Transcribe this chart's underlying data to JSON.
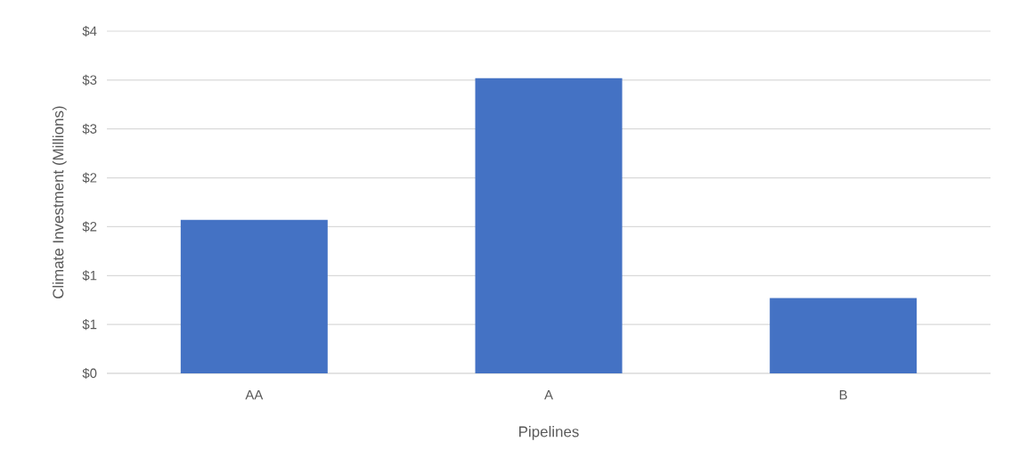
{
  "chart_data": {
    "type": "bar",
    "xlabel": "Pipelines",
    "ylabel": "Climate Investment (Millions)",
    "categories": [
      "AA",
      "A",
      "B"
    ],
    "values": [
      1.57,
      3.02,
      0.77
    ],
    "color": "#4472c4",
    "ylim": [
      0,
      3.5
    ],
    "yticks": [
      {
        "value": 0,
        "label": "$0"
      },
      {
        "value": 0.5,
        "label": "$1"
      },
      {
        "value": 1,
        "label": "$1"
      },
      {
        "value": 1.5,
        "label": "$2"
      },
      {
        "value": 2,
        "label": "$2"
      },
      {
        "value": 2.5,
        "label": "$3"
      },
      {
        "value": 3,
        "label": "$3"
      },
      {
        "value": 3.5,
        "label": "$4"
      }
    ],
    "grid": "y"
  }
}
